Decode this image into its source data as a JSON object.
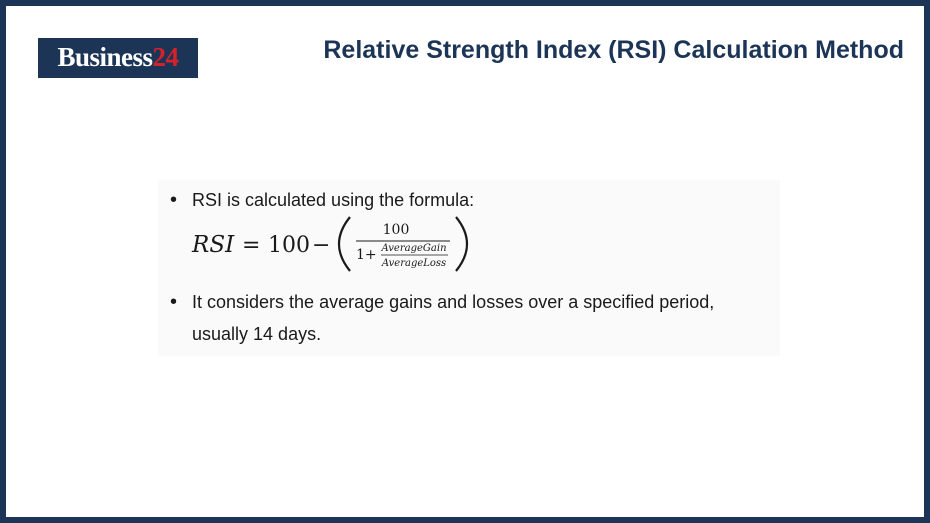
{
  "logo": {
    "brand_text": "Business",
    "brand_number": "24"
  },
  "header": {
    "title": "Relative Strength Index (RSI) Calculation Method"
  },
  "content": {
    "bullets": [
      {
        "text": "RSI is calculated using the formula:"
      },
      {
        "text_line1": "It considers the average gains and losses over a specified period,",
        "text_line2": "usually 14 days."
      }
    ],
    "formula": {
      "lhs": "RSI",
      "equals": "=",
      "constant": "100",
      "minus": "−",
      "numerator": "100",
      "denominator_prefix": "1+",
      "inner_numerator": "AverageGain",
      "inner_denominator": "AverageLoss"
    }
  },
  "colors": {
    "navy": "#1c3557",
    "brand_red": "#d3222a"
  }
}
